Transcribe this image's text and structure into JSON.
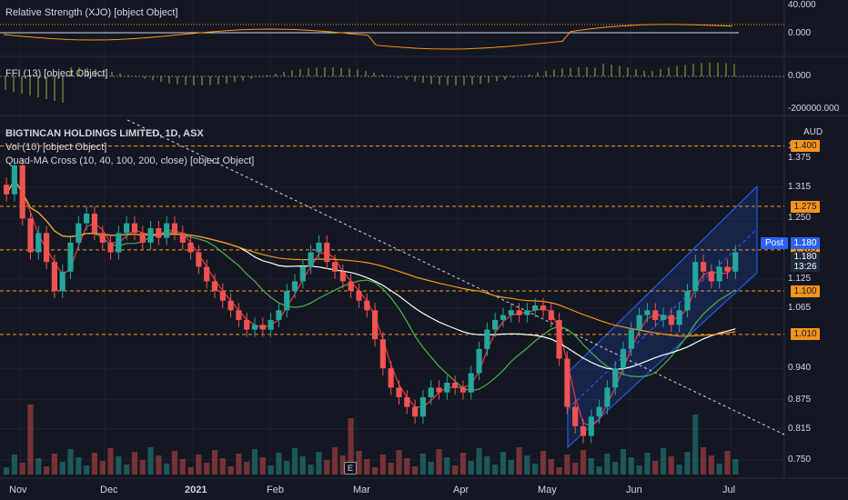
{
  "panes": {
    "xjo_label": "Relative Strength (XJO) [object Object]",
    "ffi_label": "FFI (13) [object Object]",
    "xjo_axis": [
      "40.000",
      "0.000"
    ],
    "ffi_axis": [
      "0.000",
      "-200000.000"
    ]
  },
  "main": {
    "title": "BIGTINCAN HOLDINGS LIMITED, 1D, ASX",
    "vol_label": "Vol (10) [object Object]",
    "ma_label": "Quad-MA Cross (10, 40, 100, 200, close) [object Object]",
    "currency": "AUD",
    "axis_ticks": [
      "1.4",
      "1.375",
      "1.315",
      "1.250",
      "1.125",
      "1.065",
      "0.940",
      "0.875",
      "0.815",
      "0.750"
    ],
    "level_tags": [
      "1.400",
      "1.275",
      "1.185",
      "1.100",
      "1.010"
    ],
    "post_label": "Post",
    "post_value": "1.180",
    "last_price": "1.180",
    "countdown": "13:26",
    "event_badge": "E"
  },
  "x_axis": {
    "ticks": [
      {
        "label": "Nov",
        "bold": false
      },
      {
        "label": "Dec",
        "bold": false
      },
      {
        "label": "2021",
        "bold": true
      },
      {
        "label": "Feb",
        "bold": false
      },
      {
        "label": "Mar",
        "bold": false
      },
      {
        "label": "Apr",
        "bold": false
      },
      {
        "label": "May",
        "bold": false
      },
      {
        "label": "Jun",
        "bold": false
      },
      {
        "label": "Jul",
        "bold": false
      }
    ]
  },
  "colors": {
    "up": "#26a69a",
    "down": "#ef5350",
    "ma10": "#f23645",
    "ma40": "#4caf50",
    "ma100": "#ffffff",
    "ma200": "#f7931a",
    "levels": "#f7931a",
    "channel": "#2962ff"
  },
  "chart_data": {
    "type": "candlestick",
    "symbol": "BIGTINCAN HOLDINGS LIMITED, 1D, ASX",
    "ylim": [
      0.72,
      1.42
    ],
    "horizontal_levels": [
      1.4,
      1.275,
      1.185,
      1.1,
      1.01
    ],
    "close_series": [
      1.3,
      1.36,
      1.25,
      1.18,
      1.22,
      1.16,
      1.1,
      1.14,
      1.2,
      1.24,
      1.26,
      1.22,
      1.2,
      1.18,
      1.22,
      1.24,
      1.22,
      1.2,
      1.23,
      1.21,
      1.24,
      1.22,
      1.2,
      1.18,
      1.15,
      1.12,
      1.1,
      1.08,
      1.06,
      1.04,
      1.02,
      1.03,
      1.02,
      1.04,
      1.06,
      1.1,
      1.12,
      1.15,
      1.18,
      1.2,
      1.16,
      1.14,
      1.12,
      1.1,
      1.08,
      1.06,
      1.0,
      0.94,
      0.9,
      0.88,
      0.86,
      0.84,
      0.88,
      0.9,
      0.89,
      0.91,
      0.9,
      0.89,
      0.93,
      0.98,
      1.02,
      1.04,
      1.05,
      1.06,
      1.05,
      1.06,
      1.07,
      1.06,
      1.04,
      0.96,
      0.86,
      0.82,
      0.8,
      0.84,
      0.86,
      0.9,
      0.94,
      0.98,
      1.02,
      1.05,
      1.06,
      1.04,
      1.05,
      1.03,
      1.06,
      1.1,
      1.16,
      1.14,
      1.12,
      1.15,
      1.14,
      1.18
    ]
  }
}
